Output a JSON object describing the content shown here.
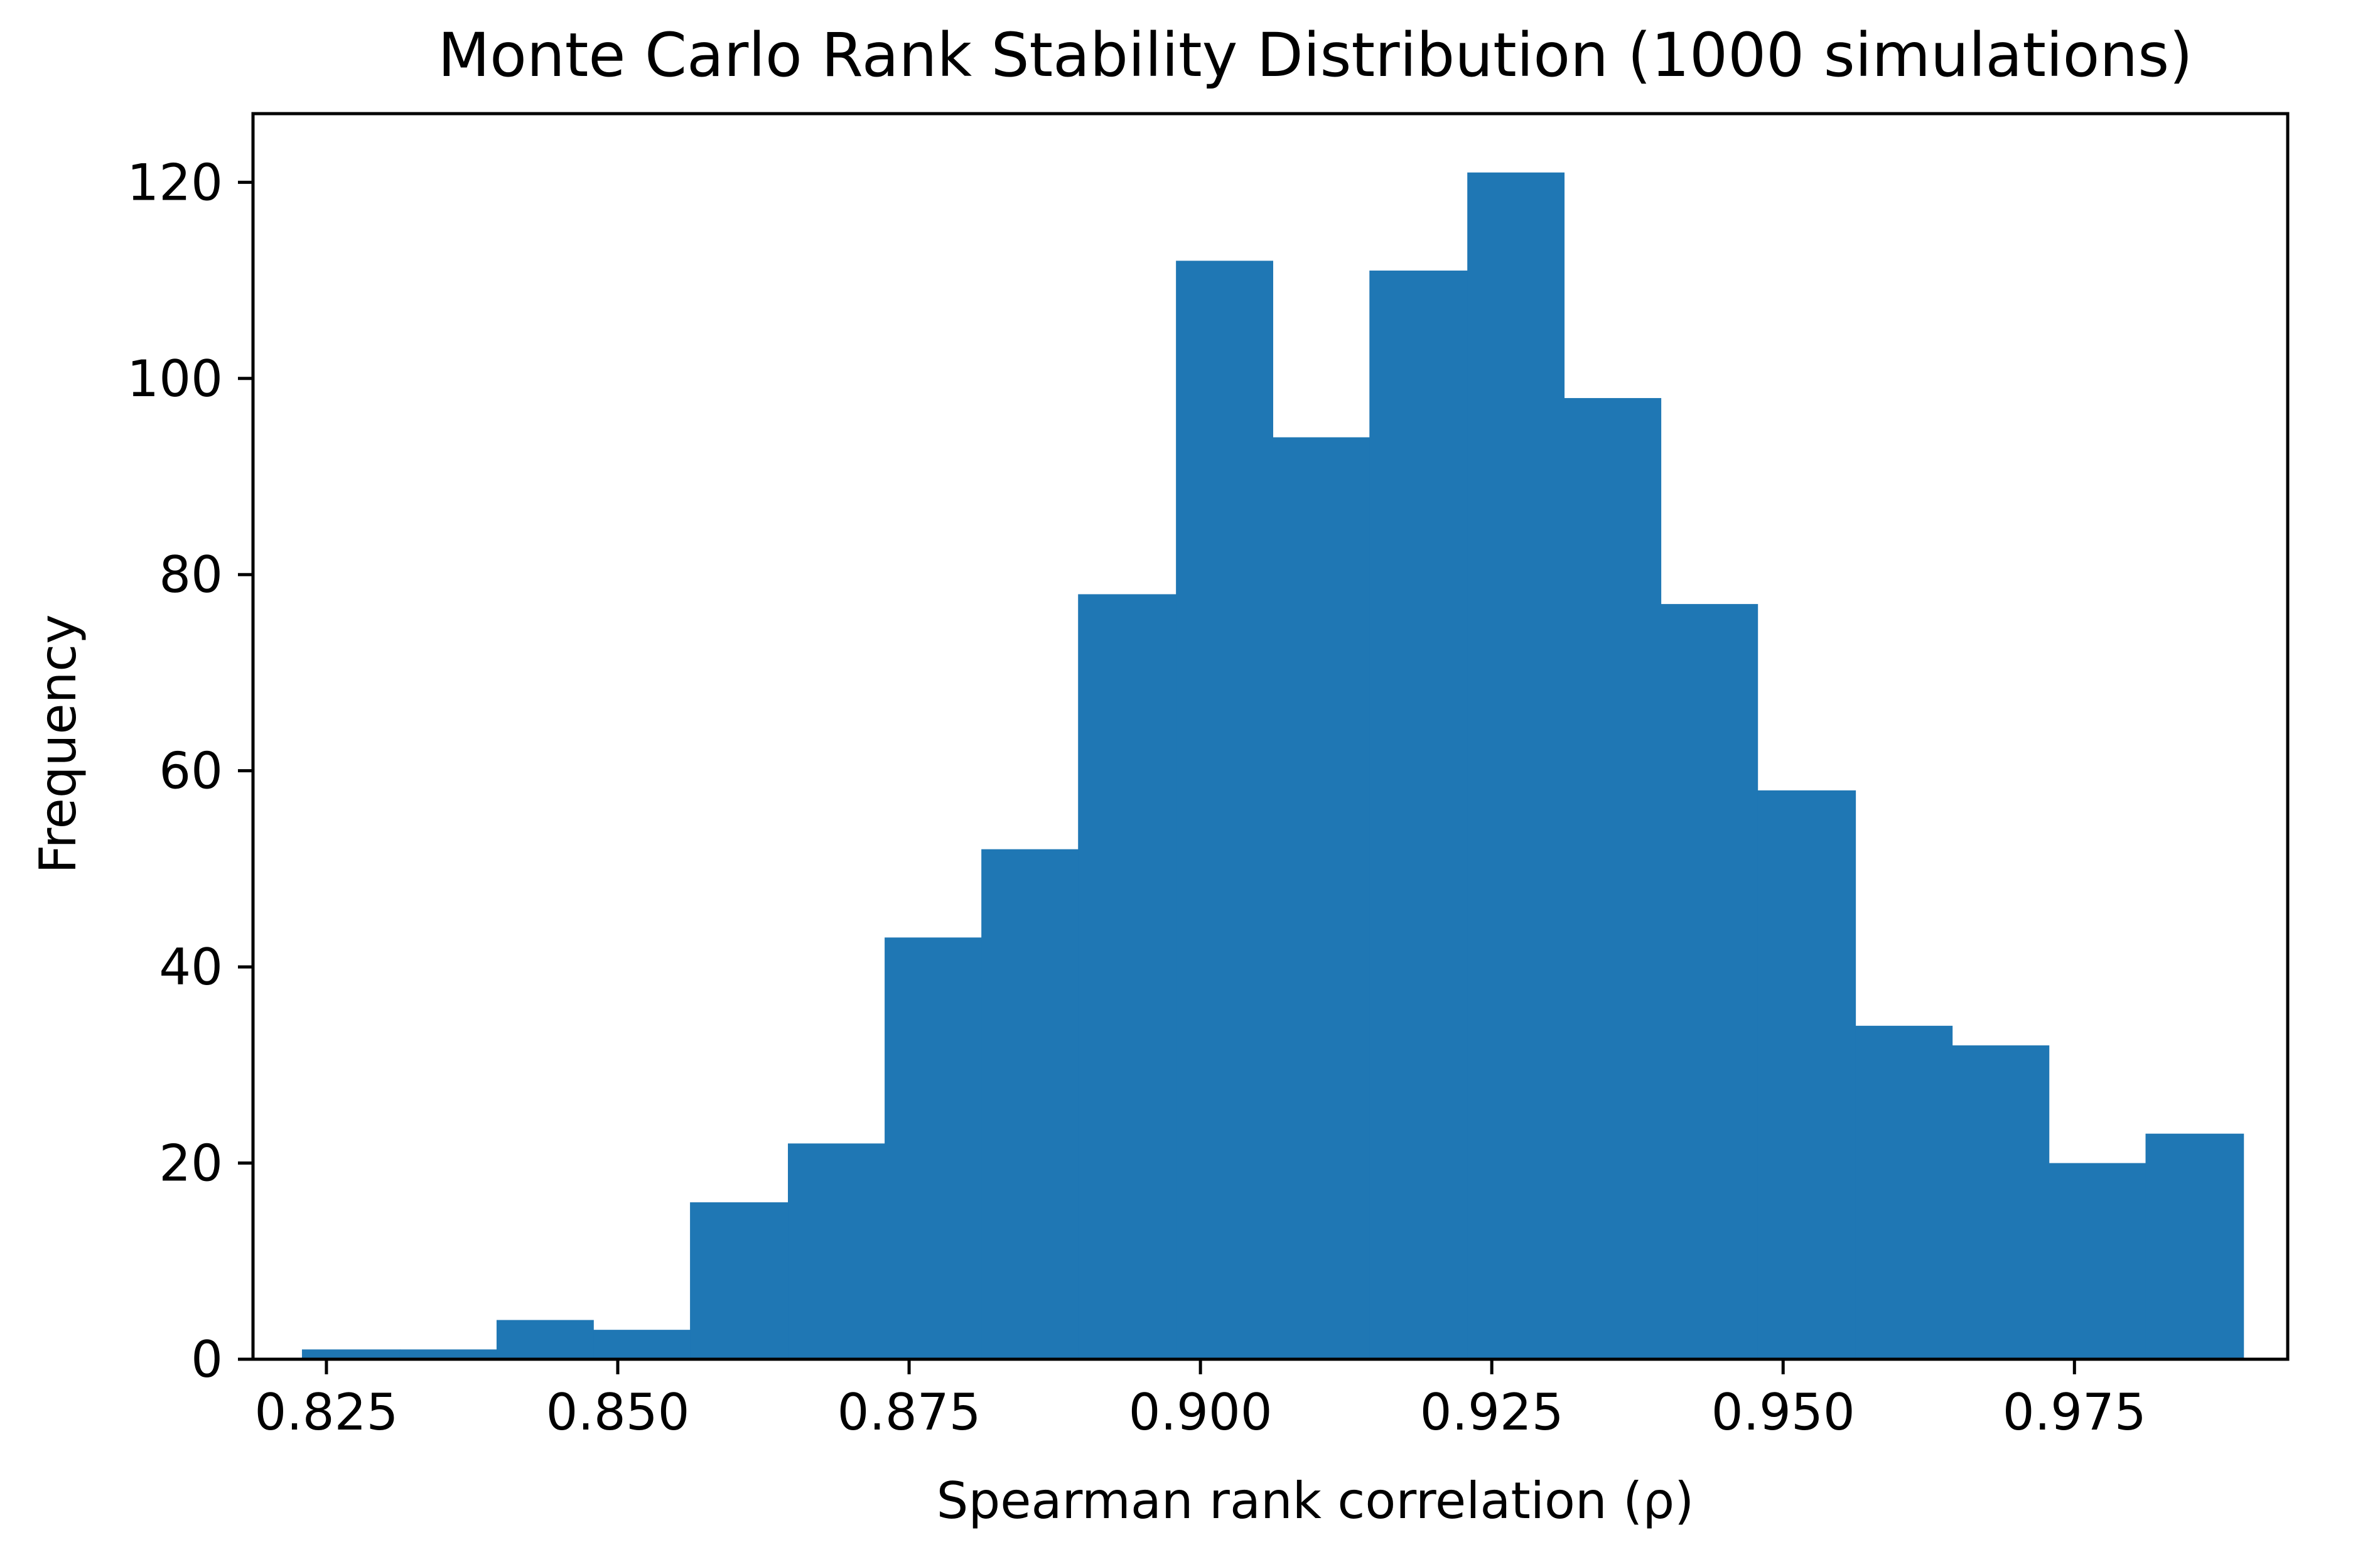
{
  "chart_data": {
    "type": "bar",
    "title": "Monte Carlo Rank Stability Distribution (1000 simulations)",
    "xlabel": "Spearman rank correlation (ρ)",
    "ylabel": "Frequency",
    "xlim": [
      0.8187,
      0.9933
    ],
    "ylim": [
      0,
      127
    ],
    "x_ticks": [
      0.825,
      0.85,
      0.875,
      0.9,
      0.925,
      0.95,
      0.975
    ],
    "x_tick_labels": [
      "0.825",
      "0.850",
      "0.875",
      "0.900",
      "0.925",
      "0.950",
      "0.975"
    ],
    "y_ticks": [
      0,
      20,
      40,
      60,
      80,
      100,
      120
    ],
    "y_tick_labels": [
      "0",
      "20",
      "40",
      "60",
      "80",
      "100",
      "120"
    ],
    "bin_edges": [
      0.8229,
      0.8313,
      0.8396,
      0.8479,
      0.8562,
      0.8646,
      0.8729,
      0.8812,
      0.8895,
      0.8979,
      0.9062,
      0.9145,
      0.9229,
      0.9312,
      0.9395,
      0.9478,
      0.9562,
      0.9645,
      0.9728,
      0.9811,
      0.9895
    ],
    "values": [
      1,
      1,
      4,
      3,
      16,
      22,
      43,
      52,
      78,
      112,
      94,
      111,
      121,
      98,
      77,
      58,
      34,
      32,
      20,
      23
    ],
    "bar_color": "#1f77b4",
    "grid": false
  }
}
